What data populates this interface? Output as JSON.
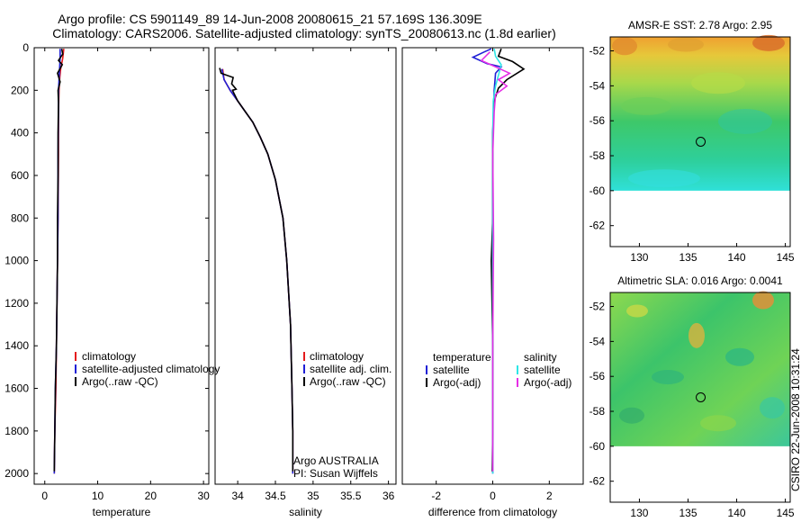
{
  "title_line1": "Argo profile: CS 5901149_89 14-Jun-2008 20080615_21 57.169S 136.309E",
  "title_line2": "Climatology: CARS2006. Satellite-adjusted climatology: synTS_20080613.nc (1.8d earlier)",
  "side_text": "CSIRO 22-Jun-2008 10:31:24",
  "colors": {
    "climatology": "#e41a1c",
    "satellite": "#1f1fd6",
    "argo": "#000000",
    "sal_satellite": "#2ee6e6",
    "sal_argo": "#e62ee6"
  },
  "chart_data": [
    {
      "id": "temperature",
      "type": "line",
      "xlabel": "temperature",
      "ylabel": "",
      "xlim": [
        -2,
        31
      ],
      "ylim": [
        2050,
        0
      ],
      "xticks": [
        0,
        10,
        20,
        30
      ],
      "yticks": [
        0,
        200,
        400,
        600,
        800,
        1000,
        1200,
        1400,
        1600,
        1800,
        2000
      ],
      "legend": [
        "climatology",
        "satellite-adjusted climatology",
        "Argo(..raw -QC)"
      ],
      "series": [
        {
          "name": "climatology",
          "color_key": "climatology",
          "points": [
            [
              3.6,
              5
            ],
            [
              3.4,
              50
            ],
            [
              3.0,
              100
            ],
            [
              2.8,
              150
            ],
            [
              2.7,
              200
            ],
            [
              2.6,
              300
            ],
            [
              2.6,
              500
            ],
            [
              2.5,
              800
            ],
            [
              2.4,
              1000
            ],
            [
              2.3,
              1200
            ],
            [
              2.2,
              1400
            ],
            [
              2.1,
              1600
            ],
            [
              1.9,
              1800
            ],
            [
              1.8,
              2000
            ]
          ]
        },
        {
          "name": "satellite-adjusted climatology",
          "color_key": "satellite",
          "points": [
            [
              2.9,
              5
            ],
            [
              2.9,
              50
            ],
            [
              2.8,
              100
            ],
            [
              2.7,
              150
            ],
            [
              2.6,
              200
            ],
            [
              2.6,
              300
            ],
            [
              2.5,
              500
            ],
            [
              2.5,
              800
            ],
            [
              2.4,
              1000
            ],
            [
              2.3,
              1200
            ],
            [
              2.2,
              1400
            ],
            [
              2.0,
              1600
            ],
            [
              1.9,
              1800
            ],
            [
              1.8,
              2000
            ]
          ]
        },
        {
          "name": "Argo(..raw -QC)",
          "color_key": "argo",
          "points": [
            [
              3.2,
              5
            ],
            [
              3.4,
              30
            ],
            [
              2.6,
              60
            ],
            [
              3.3,
              80
            ],
            [
              2.4,
              120
            ],
            [
              2.9,
              160
            ],
            [
              2.5,
              200
            ],
            [
              2.6,
              260
            ],
            [
              2.5,
              400
            ],
            [
              2.5,
              600
            ],
            [
              2.4,
              800
            ],
            [
              2.4,
              1000
            ],
            [
              2.3,
              1200
            ],
            [
              2.2,
              1400
            ],
            [
              2.0,
              1600
            ],
            [
              1.9,
              1800
            ],
            [
              1.8,
              1990
            ]
          ]
        }
      ]
    },
    {
      "id": "salinity",
      "type": "line",
      "xlabel": "salinity",
      "ylabel": "",
      "xlim": [
        33.7,
        36.1
      ],
      "ylim": [
        2050,
        0
      ],
      "xticks": [
        34,
        34.5,
        35,
        35.5,
        36
      ],
      "tick_labels": [
        "34",
        "34.5",
        "35",
        "35.5",
        "36"
      ],
      "legend": [
        "climatology",
        "satellite adj. clim.",
        "Argo(..raw -QC)"
      ],
      "annotation": [
        "Argo AUSTRALIA",
        "PI: Susan Wijffels"
      ],
      "series": [
        {
          "name": "climatology",
          "color_key": "climatology",
          "points": [
            [
              33.8,
              100
            ],
            [
              33.82,
              150
            ],
            [
              33.9,
              200
            ],
            [
              34.0,
              250
            ],
            [
              34.1,
              300
            ],
            [
              34.2,
              350
            ],
            [
              34.3,
              420
            ],
            [
              34.4,
              500
            ],
            [
              34.5,
              620
            ],
            [
              34.6,
              800
            ],
            [
              34.65,
              1000
            ],
            [
              34.7,
              1300
            ],
            [
              34.72,
              1600
            ],
            [
              34.73,
              1800
            ],
            [
              34.73,
              2000
            ]
          ]
        },
        {
          "name": "satellite adj. clim.",
          "color_key": "satellite",
          "points": [
            [
              33.79,
              100
            ],
            [
              33.82,
              150
            ],
            [
              33.9,
              200
            ],
            [
              34.0,
              250
            ],
            [
              34.1,
              300
            ],
            [
              34.2,
              350
            ],
            [
              34.3,
              420
            ],
            [
              34.4,
              500
            ],
            [
              34.5,
              620
            ],
            [
              34.6,
              800
            ],
            [
              34.65,
              1000
            ],
            [
              34.7,
              1300
            ],
            [
              34.72,
              1600
            ],
            [
              34.73,
              1800
            ],
            [
              34.73,
              2000
            ]
          ]
        },
        {
          "name": "Argo(..raw -QC)",
          "color_key": "argo",
          "points": [
            [
              33.76,
              95
            ],
            [
              33.78,
              120
            ],
            [
              33.94,
              140
            ],
            [
              33.92,
              170
            ],
            [
              33.98,
              195
            ],
            [
              33.93,
              200
            ],
            [
              34.0,
              250
            ],
            [
              34.1,
              300
            ],
            [
              34.2,
              350
            ],
            [
              34.3,
              420
            ],
            [
              34.4,
              500
            ],
            [
              34.5,
              620
            ],
            [
              34.6,
              800
            ],
            [
              34.65,
              1000
            ],
            [
              34.7,
              1300
            ],
            [
              34.72,
              1600
            ],
            [
              34.73,
              1800
            ],
            [
              34.73,
              1990
            ]
          ]
        }
      ]
    },
    {
      "id": "difference",
      "type": "line",
      "xlabel": "difference from climatology",
      "ylabel": "",
      "xlim": [
        -3.2,
        3.2
      ],
      "ylim": [
        2050,
        0
      ],
      "xticks": [
        -2,
        0,
        2
      ],
      "legend_left": {
        "header": "temperature",
        "entries": [
          "satellite",
          "Argo(-adj)"
        ]
      },
      "legend_right": {
        "header": "salinity",
        "entries": [
          "satellite",
          "Argo(-adj)"
        ]
      },
      "series": [
        {
          "name": "temperature satellite",
          "color_key": "satellite",
          "points": [
            [
              -0.05,
              5
            ],
            [
              -0.3,
              20
            ],
            [
              -0.7,
              45
            ],
            [
              -0.2,
              75
            ],
            [
              0.3,
              90
            ],
            [
              0.1,
              120
            ],
            [
              0.05,
              200
            ],
            [
              0,
              400
            ],
            [
              0,
              800
            ],
            [
              0,
              1200
            ],
            [
              0,
              1600
            ],
            [
              0,
              2000
            ]
          ]
        },
        {
          "name": "temperature Argo(-adj)",
          "color_key": "argo",
          "points": [
            [
              0.3,
              5
            ],
            [
              0.2,
              40
            ],
            [
              0.7,
              65
            ],
            [
              1.1,
              100
            ],
            [
              0.5,
              150
            ],
            [
              0.2,
              190
            ],
            [
              0.05,
              250
            ],
            [
              0,
              400
            ],
            [
              0,
              800
            ],
            [
              -0.05,
              1000
            ],
            [
              0,
              1400
            ],
            [
              0,
              1800
            ],
            [
              -0.02,
              1990
            ]
          ]
        },
        {
          "name": "salinity satellite",
          "color_key": "sal_satellite",
          "points": [
            [
              0.05,
              5
            ],
            [
              0.1,
              40
            ],
            [
              0.3,
              80
            ],
            [
              0.2,
              130
            ],
            [
              0.1,
              180
            ],
            [
              0.02,
              250
            ],
            [
              0,
              400
            ],
            [
              0,
              800
            ],
            [
              0,
              1200
            ],
            [
              0,
              1600
            ],
            [
              0,
              2000
            ]
          ]
        },
        {
          "name": "salinity Argo(-adj)",
          "color_key": "sal_argo",
          "points": [
            [
              -0.1,
              20
            ],
            [
              -0.4,
              60
            ],
            [
              0.1,
              90
            ],
            [
              0.6,
              120
            ],
            [
              0.2,
              150
            ],
            [
              0.5,
              180
            ],
            [
              0.1,
              220
            ],
            [
              0.05,
              300
            ],
            [
              0,
              500
            ],
            [
              0.03,
              900
            ],
            [
              0,
              1400
            ],
            [
              0,
              1990
            ]
          ]
        }
      ]
    },
    {
      "id": "sst-map",
      "type": "heatmap",
      "title": "AMSR-E SST: 2.78 Argo: 2.95",
      "xlim": [
        127,
        145.5
      ],
      "ylim": [
        -63.2,
        -51.2
      ],
      "xticks": [
        130,
        135,
        140,
        145
      ],
      "yticks": [
        -52,
        -54,
        -56,
        -58,
        -60,
        -62
      ],
      "data_extent_lat": [
        -60,
        -51.2
      ],
      "marker": {
        "lon": 136.3,
        "lat": -57.2
      }
    },
    {
      "id": "sla-map",
      "type": "heatmap",
      "title": "Altimetric SLA: 0.016 Argo: 0.0041",
      "xlim": [
        127,
        145.5
      ],
      "ylim": [
        -63.2,
        -51.2
      ],
      "xticks": [
        130,
        135,
        140,
        145
      ],
      "yticks": [
        -52,
        -54,
        -56,
        -58,
        -60,
        -62
      ],
      "data_extent_lat": [
        -60,
        -51.2
      ],
      "marker": {
        "lon": 136.3,
        "lat": -57.2
      }
    }
  ]
}
